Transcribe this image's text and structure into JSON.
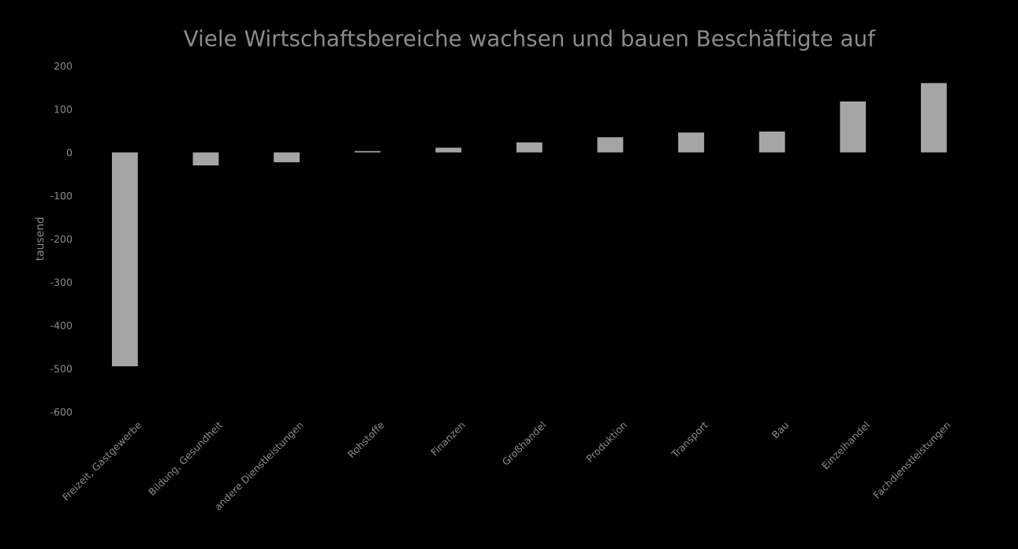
{
  "chart_data": {
    "type": "bar",
    "title": "Viele Wirtschaftsbereiche wachsen und bauen Beschäftigte auf",
    "ylabel": "tausend",
    "categories": [
      "Freizeit, Gastgewerbe",
      "Bildung, Gesundheit",
      "andere Dienstleistungen",
      "Rohstoffe",
      "Finanzen",
      "Großhandel",
      "Produktion",
      "Transport",
      "Bau",
      "Einzelhandel",
      "Fachdienstleistungen"
    ],
    "values": [
      -495,
      -30,
      -23,
      3,
      11,
      23,
      35,
      46,
      48,
      118,
      160
    ],
    "color": "#a5a5a5",
    "ylim": [
      -600,
      200
    ],
    "yticks": [
      -600,
      -500,
      -400,
      -300,
      -200,
      -100,
      0,
      100,
      200
    ],
    "grid": false
  }
}
